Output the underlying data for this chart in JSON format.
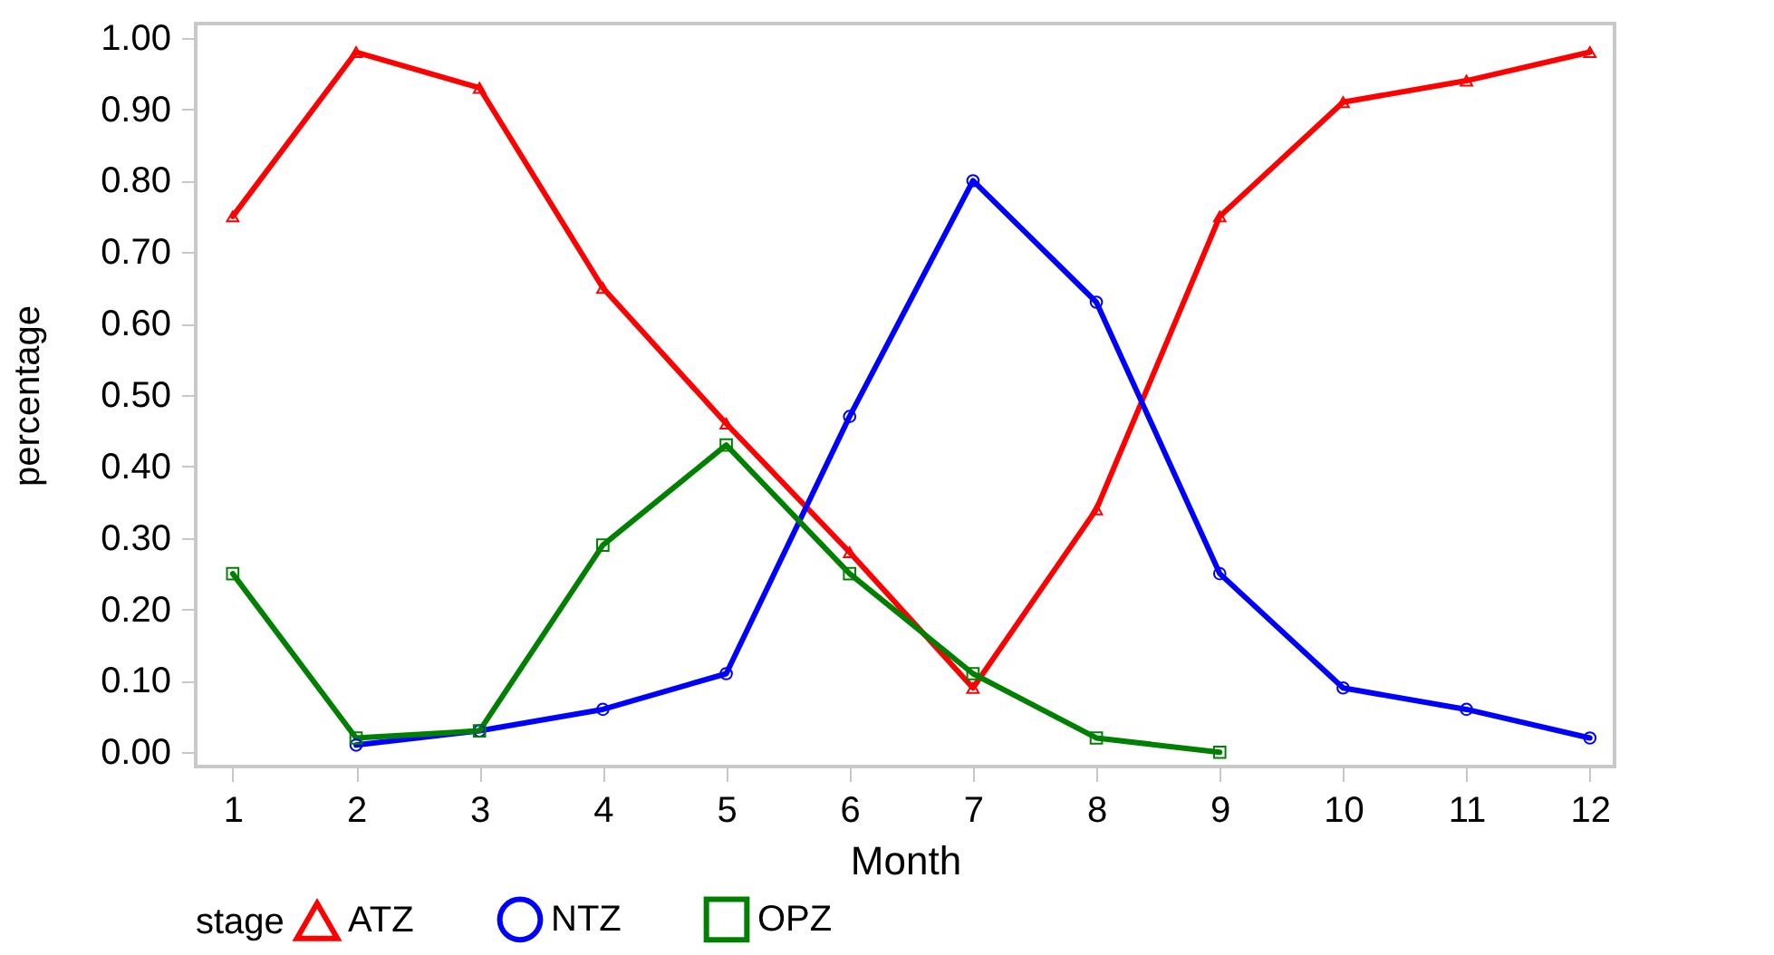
{
  "chart_data": {
    "type": "line",
    "xlabel": "Month",
    "ylabel": "percentage",
    "legend_title": "stage",
    "legend": "bottom",
    "grid": false,
    "line_style": "solid",
    "x": [
      1,
      2,
      3,
      4,
      5,
      6,
      7,
      8,
      9,
      10,
      11,
      12
    ],
    "xlim": [
      0.7,
      12.2
    ],
    "xticks": [
      1,
      2,
      3,
      4,
      5,
      6,
      7,
      8,
      9,
      10,
      11,
      12
    ],
    "ylim": [
      -0.02,
      1.02
    ],
    "yticks": [
      {
        "value": 0,
        "label": "0.00"
      },
      {
        "value": 0.1,
        "label": "0.10"
      },
      {
        "value": 0.2,
        "label": "0.20"
      },
      {
        "value": 0.3,
        "label": "0.30"
      },
      {
        "value": 0.4,
        "label": "0.40"
      },
      {
        "value": 0.5,
        "label": "0.50"
      },
      {
        "value": 0.6,
        "label": "0.60"
      },
      {
        "value": 0.7,
        "label": "0.70"
      },
      {
        "value": 0.8,
        "label": "0.80"
      },
      {
        "value": 0.9,
        "label": "0.90"
      },
      {
        "value": 1,
        "label": "1.00"
      }
    ],
    "series": [
      {
        "name": "ATZ",
        "color": "#ff0000",
        "marker": "triangle",
        "values": [
          0.75,
          0.98,
          0.93,
          0.65,
          0.46,
          0.28,
          0.09,
          0.34,
          0.75,
          0.91,
          0.94,
          0.98
        ]
      },
      {
        "name": "NTZ",
        "color": "#0000ff",
        "marker": "circle",
        "values": [
          null,
          0.01,
          0.03,
          0.06,
          0.11,
          0.47,
          0.8,
          0.63,
          0.25,
          0.09,
          0.06,
          0.02
        ]
      },
      {
        "name": "OPZ",
        "color": "#008000",
        "marker": "square",
        "values": [
          0.25,
          0.02,
          0.03,
          0.29,
          0.43,
          0.25,
          0.11,
          0.02,
          0.0,
          null,
          null,
          null
        ]
      }
    ]
  }
}
